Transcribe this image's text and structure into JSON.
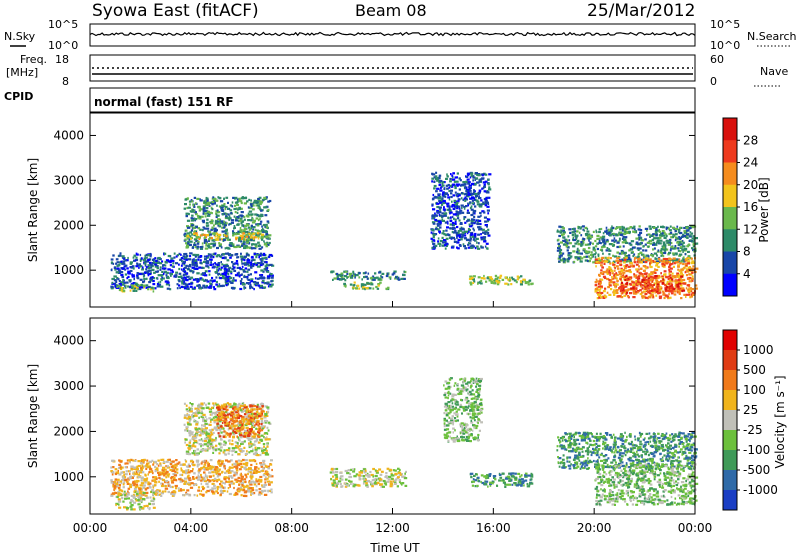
{
  "header": {
    "station": "Syowa East (fitACF)",
    "beam": "Beam 08",
    "date": "25/Mar/2012"
  },
  "summary": {
    "nsky_label": "N.Sky",
    "nsearch_label": "N.Search",
    "noise_ticks_left": [
      "10^5",
      "10^0"
    ],
    "noise_ticks_right": [
      "10^5",
      "10^0"
    ],
    "freq_label": "Freq.",
    "freq_unit": "[MHz]",
    "freq_ticks": [
      "18",
      "8"
    ],
    "nave_label": "Nave",
    "nave_ticks": [
      "60",
      "0"
    ],
    "cpid_label": "CPID",
    "cpid_value": "normal (fast) 151 RF"
  },
  "chart_data": [
    {
      "type": "heatmap",
      "name": "power",
      "ylabel": "Slant Range [km]",
      "y_ticks": [
        "1000",
        "2000",
        "3000",
        "4000"
      ],
      "ylim": [
        180,
        4500
      ],
      "x_ticks": [
        "00:00",
        "04:00",
        "08:00",
        "12:00",
        "16:00",
        "20:00",
        "00:00"
      ],
      "xlim_hours": [
        0,
        24
      ],
      "colorbar_label": "Power [dB]",
      "colorbar_ticks": [
        "4",
        "8",
        "12",
        "16",
        "20",
        "24",
        "28"
      ],
      "colorbar_colors": [
        "#0000ff",
        "#1846a8",
        "#2d8a68",
        "#6ab84c",
        "#f2c41c",
        "#f58c1e",
        "#ee3a1e",
        "#d8100c"
      ],
      "echo_regions": [
        {
          "t": [
            3.7,
            7.1
          ],
          "r": [
            1500,
            2650
          ],
          "level": 2
        },
        {
          "t": [
            3.8,
            6.8
          ],
          "r": [
            1700,
            1850
          ],
          "level": 4
        },
        {
          "t": [
            0.8,
            7.2
          ],
          "r": [
            600,
            1400
          ],
          "level": 1
        },
        {
          "t": [
            1.0,
            2.5
          ],
          "r": [
            550,
            700
          ],
          "level": 3
        },
        {
          "t": [
            9.5,
            12.5
          ],
          "r": [
            800,
            1000
          ],
          "level": 2
        },
        {
          "t": [
            10.0,
            11.8
          ],
          "r": [
            600,
            750
          ],
          "level": 3
        },
        {
          "t": [
            15.0,
            17.5
          ],
          "r": [
            700,
            900
          ],
          "level": 3
        },
        {
          "t": [
            18.5,
            24.0
          ],
          "r": [
            1200,
            2000
          ],
          "level": 2
        },
        {
          "t": [
            20.0,
            24.0
          ],
          "r": [
            400,
            1300
          ],
          "level": 5
        },
        {
          "t": [
            21.0,
            23.5
          ],
          "r": [
            500,
            900
          ],
          "level": 6
        },
        {
          "t": [
            13.5,
            15.8
          ],
          "r": [
            1500,
            3200
          ],
          "level": 1
        }
      ]
    },
    {
      "type": "heatmap",
      "name": "velocity",
      "ylabel": "Slant Range [km]",
      "y_ticks": [
        "1000",
        "2000",
        "3000",
        "4000"
      ],
      "ylim": [
        180,
        4500
      ],
      "x_ticks": [
        "00:00",
        "04:00",
        "08:00",
        "12:00",
        "16:00",
        "20:00",
        "00:00"
      ],
      "xlim_hours": [
        0,
        24
      ],
      "xlabel": "Time UT",
      "colorbar_label": "Velocity [m s⁻¹]",
      "colorbar_ticks": [
        "1000",
        "500",
        "100",
        "25",
        "-25",
        "-100",
        "-500",
        "-1000"
      ],
      "colorbar_colors": [
        "#1a3ec4",
        "#2f6aa8",
        "#3f9a58",
        "#6cc03c",
        "#c0c0b8",
        "#f0b41c",
        "#f07a1a",
        "#e03c14",
        "#e00000"
      ],
      "echo_regions": [
        {
          "t": [
            3.7,
            7.1
          ],
          "r": [
            1500,
            2650
          ],
          "level": 4
        },
        {
          "t": [
            5.0,
            6.8
          ],
          "r": [
            1900,
            2600
          ],
          "level": 6
        },
        {
          "t": [
            0.8,
            7.2
          ],
          "r": [
            600,
            1400
          ],
          "level": 5
        },
        {
          "t": [
            1.0,
            2.5
          ],
          "r": [
            300,
            700
          ],
          "level": 4
        },
        {
          "t": [
            9.5,
            12.5
          ],
          "r": [
            800,
            1200
          ],
          "level": 4
        },
        {
          "t": [
            15.0,
            17.5
          ],
          "r": [
            800,
            1100
          ],
          "level": 2
        },
        {
          "t": [
            18.5,
            24.0
          ],
          "r": [
            1200,
            2000
          ],
          "level": 2
        },
        {
          "t": [
            20.0,
            24.0
          ],
          "r": [
            400,
            1300
          ],
          "level": 3
        },
        {
          "t": [
            14.0,
            15.5
          ],
          "r": [
            1800,
            3200
          ],
          "level": 3
        }
      ]
    }
  ]
}
